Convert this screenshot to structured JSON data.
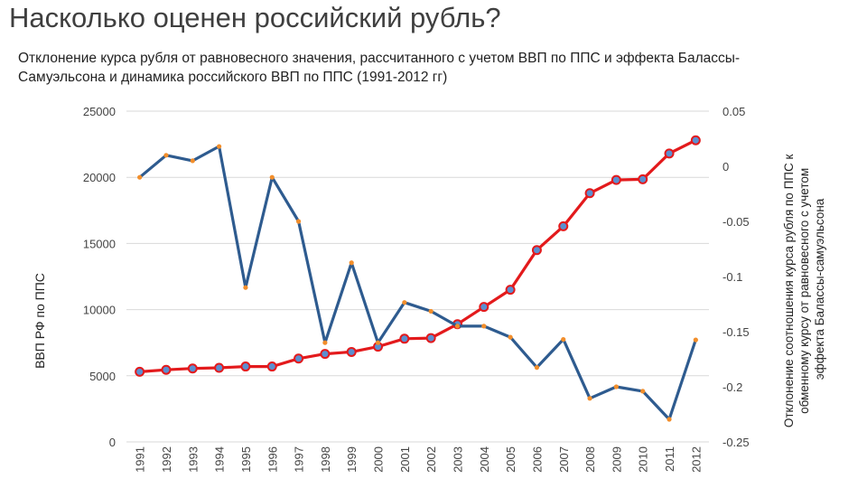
{
  "header": {
    "title": "Насколько оценен российский рубль?",
    "subtitle": "Отклонение курса рубля от равновесного значения, рассчитанного с учетом ВВП по ППС и эффекта Балассы- Самуэльсона и динамика российского ВВП по ППС (1991-2012 гг)"
  },
  "colors": {
    "gdp_line": "#e31a1c",
    "gdp_marker": "#5b8fd0",
    "deviation_line": "#2e5b8f",
    "deviation_marker": "#f28e2b",
    "grid": "#d9d9d9"
  },
  "chart_data": {
    "type": "line",
    "x": [
      "1991",
      "1992",
      "1993",
      "1994",
      "1995",
      "1996",
      "1997",
      "1998",
      "1999",
      "2000",
      "2001",
      "2002",
      "2003",
      "2004",
      "2005",
      "2006",
      "2007",
      "2008",
      "2009",
      "2010",
      "2011",
      "2012"
    ],
    "series": [
      {
        "axis": "left",
        "values": [
          5300,
          5450,
          5550,
          5600,
          5700,
          5700,
          6300,
          6650,
          6800,
          7200,
          7800,
          7850,
          8900,
          10200,
          11500,
          14500,
          16300,
          18800,
          19800,
          19850,
          21800,
          22800
        ]
      },
      {
        "axis": "right",
        "values": [
          -0.01,
          0.01,
          0.005,
          0.018,
          -0.11,
          -0.01,
          -0.05,
          -0.16,
          -0.0875,
          -0.16,
          -0.1235,
          -0.1315,
          -0.145,
          -0.145,
          -0.155,
          -0.1825,
          -0.157,
          -0.2105,
          -0.2,
          -0.204,
          -0.2295,
          -0.1575
        ]
      }
    ],
    "y_left": {
      "label": "ВВП РФ по ППС",
      "ylim": [
        0,
        25000
      ],
      "ticks": [
        "0",
        "5000",
        "10000",
        "15000",
        "20000",
        "25000"
      ]
    },
    "y_right": {
      "label_lines": [
        "Отклонение соотношения курса рубля по ППС к",
        "обменному курсу от равновесного с учетом",
        "эффекта Балассы-самуэльсона"
      ],
      "ylim": [
        -0.25,
        0.05
      ],
      "ticks": [
        "-0.25",
        "-0.2",
        "-0.15",
        "-0.1",
        "-0.05",
        "0",
        "0.05"
      ]
    },
    "grid": true
  }
}
